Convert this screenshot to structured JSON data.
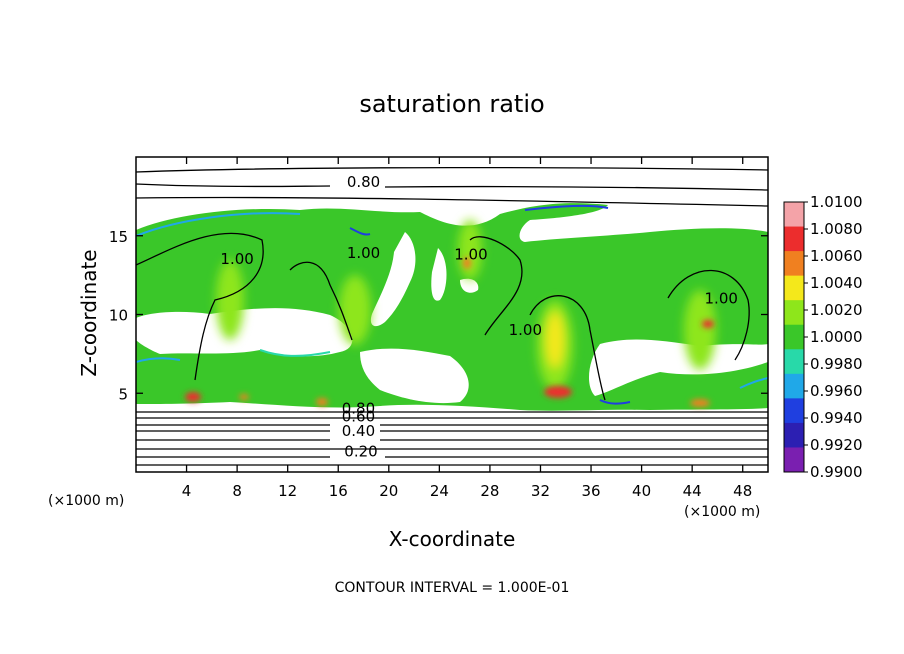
{
  "chart_data": {
    "type": "heatmap",
    "title": "saturation ratio",
    "xlabel": "X-coordinate",
    "ylabel": "Z-coordinate",
    "x_unit_label": "(×1000 m)",
    "x_unit_label_right": "(×1000 m)",
    "x_ticks": [
      4,
      8,
      12,
      16,
      20,
      24,
      28,
      32,
      36,
      40,
      44,
      48
    ],
    "y_ticks": [
      5,
      10,
      15
    ],
    "xlim": [
      0,
      50
    ],
    "ylim": [
      0,
      20
    ],
    "colorbar": {
      "levels": [
        "1.0100",
        "1.0080",
        "1.0060",
        "1.0040",
        "1.0020",
        "1.0000",
        "0.9980",
        "0.9960",
        "0.9940",
        "0.9920",
        "0.9900"
      ],
      "colors": [
        "#f4a3a8",
        "#ec2d2d",
        "#f08020",
        "#f4e81b",
        "#8ee61b",
        "#3ac729",
        "#28d9a9",
        "#20a8e8",
        "#1f3fe0",
        "#2c1fb2",
        "#7a1fb0"
      ]
    },
    "contour_labels": [
      {
        "text": "0.80",
        "x": 18,
        "z": 18.1
      },
      {
        "text": "1.00",
        "x": 8,
        "z": 13.2
      },
      {
        "text": "1.00",
        "x": 18,
        "z": 13.6
      },
      {
        "text": "1.00",
        "x": 26.5,
        "z": 13.5
      },
      {
        "text": "1.00",
        "x": 30.8,
        "z": 8.7
      },
      {
        "text": "1.00",
        "x": 46.3,
        "z": 10.7
      },
      {
        "text": "0.80",
        "x": 17.6,
        "z": 3.7
      },
      {
        "text": "0.60",
        "x": 17.6,
        "z": 3.2
      },
      {
        "text": "0.40",
        "x": 17.6,
        "z": 2.3
      },
      {
        "text": "0.20",
        "x": 17.8,
        "z": 1.0
      }
    ],
    "footnote": "CONTOUR INTERVAL = 1.000E-01",
    "grid": false,
    "legend": "right"
  }
}
